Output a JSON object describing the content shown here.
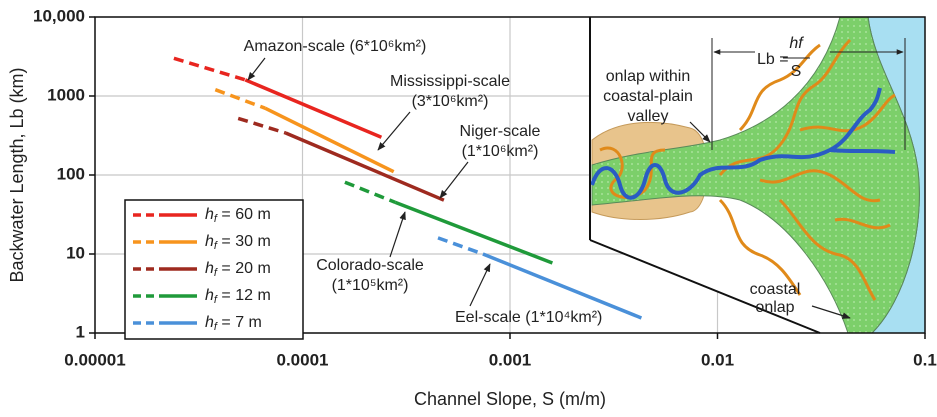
{
  "chart_data": {
    "type": "line",
    "x_label": "Channel Slope, S (m/m)",
    "y_label": "Backwater Length, Lb (km)",
    "log_x": true,
    "log_y": true,
    "grid": true,
    "legend": "lower left",
    "xlim": [
      1e-05,
      0.1
    ],
    "ylim": [
      1,
      10000
    ],
    "xticks": [
      {
        "value": 1e-05,
        "label": "0.00001"
      },
      {
        "value": 0.0001,
        "label": "0.0001"
      },
      {
        "value": 0.001,
        "label": "0.001"
      },
      {
        "value": 0.01,
        "label": "0.01"
      },
      {
        "value": 0.1,
        "label": "0.1"
      }
    ],
    "yticks": [
      1,
      10,
      100,
      1000,
      {
        "value": 10000,
        "label": "10,000"
      }
    ],
    "series": [
      {
        "name": "hf = 60 m",
        "color": "#e8251f",
        "x": [
          2.4e-05,
          5.3e-05,
          0.00024
        ],
        "values": [
          3000,
          1600,
          300
        ]
      },
      {
        "name": "hf = 30 m",
        "color": "#f7941d",
        "x": [
          3.8e-05,
          6.6e-05,
          0.000275
        ],
        "values": [
          1200,
          700,
          110
        ]
      },
      {
        "name": "hf = 20 m",
        "color": "#9e2a1f",
        "x": [
          4.9e-05,
          8.3e-05,
          0.00048
        ],
        "values": [
          520,
          340,
          48
        ]
      },
      {
        "name": "hf = 12 m",
        "color": "#1f9a3a",
        "x": [
          0.00016,
          0.00028,
          0.0016
        ],
        "values": [
          81,
          45,
          7.7
        ]
      },
      {
        "name": "hf = 7 m",
        "color": "#4a90d9",
        "x": [
          0.00045,
          0.00074,
          0.0043
        ],
        "values": [
          16,
          10,
          1.55
        ]
      }
    ],
    "annotations": [
      "Amazon-scale (6*10⁶km²)",
      "Mississippi-scale",
      "(3*10⁶km²)",
      "Niger-scale",
      "(1*10⁶km²)",
      "Colorado-scale",
      "(1*10⁵km²)",
      "Eel-scale (1*10⁴km²)",
      "onlap within",
      "coastal-plain",
      "valley",
      "Lb =",
      "hf",
      "S",
      "coastal",
      "onlap"
    ]
  }
}
